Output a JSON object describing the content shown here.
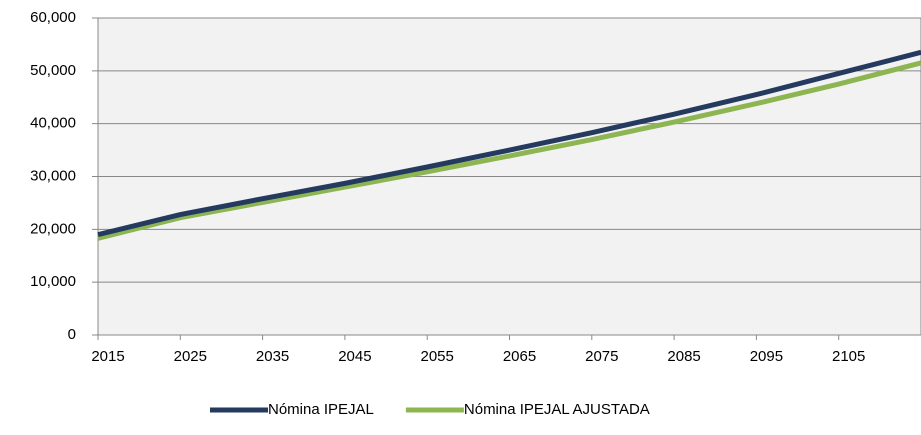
{
  "chart_data": {
    "type": "line",
    "x": [
      2015,
      2025,
      2035,
      2045,
      2055,
      2065,
      2075,
      2085,
      2095,
      2105,
      2115
    ],
    "series": [
      {
        "name": "Nómina IPEJAL",
        "color": "#243a5e",
        "values": [
          19000,
          22800,
          25800,
          28700,
          31800,
          35000,
          38300,
          41800,
          45500,
          49500,
          53500
        ]
      },
      {
        "name": "Nómina IPEJAL AJUSTADA",
        "color": "#8db552",
        "values": [
          18300,
          22200,
          25100,
          28000,
          30900,
          33900,
          37000,
          40300,
          43800,
          47500,
          51500
        ]
      }
    ],
    "xlim": [
      2015,
      2115
    ],
    "xticks": [
      2015,
      2025,
      2035,
      2045,
      2055,
      2065,
      2075,
      2085,
      2095,
      2105
    ],
    "ylim": [
      0,
      60000
    ],
    "yticks": [
      0,
      {
        "value": 10000,
        "label": "10,000"
      },
      {
        "value": 20000,
        "label": "20,000"
      },
      {
        "value": 30000,
        "label": "30,000"
      },
      {
        "value": 40000,
        "label": "40,000"
      },
      {
        "value": 50000,
        "label": "50,000"
      },
      {
        "value": 60000,
        "label": "60,000"
      }
    ],
    "grid": true,
    "legend": "bottom"
  }
}
